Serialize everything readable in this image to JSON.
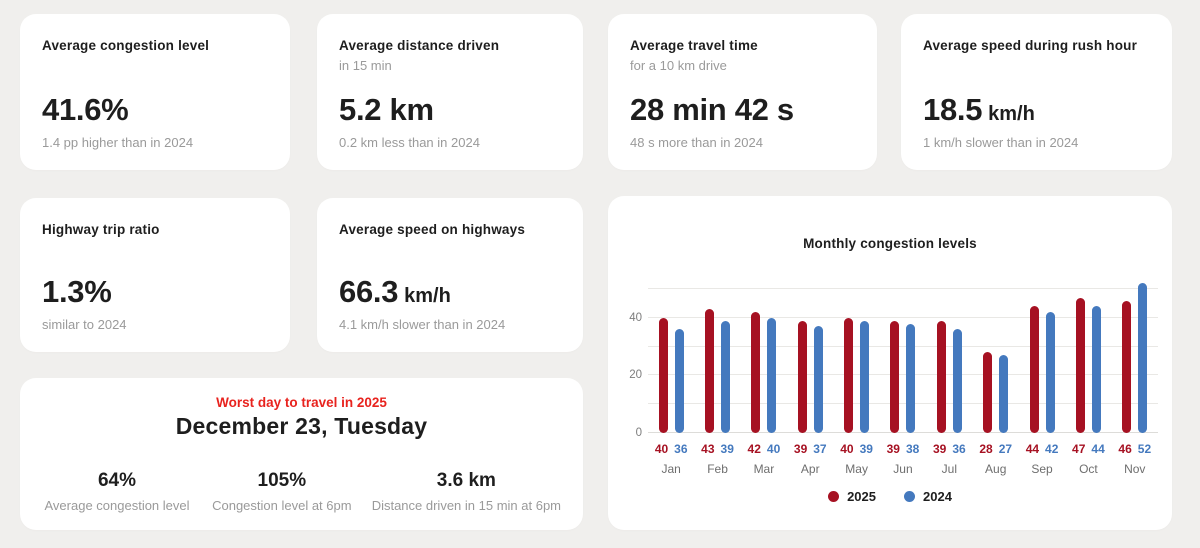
{
  "theme": {
    "background": "#f0efed",
    "card_background": "#ffffff",
    "text_dark": "#1e1e1e",
    "text_gray": "#9a9a9a",
    "accent_red": "#e8231e",
    "bar_red": "#a61122",
    "bar_blue": "#4479be"
  },
  "stat_cards": [
    {
      "title": "Average congestion level",
      "subtitle": "",
      "value": "41.6%",
      "unit": "",
      "note": "1.4 pp higher than in 2024"
    },
    {
      "title": "Average distance driven",
      "subtitle": "in 15 min",
      "value": "5.2 km",
      "unit": "",
      "note": "0.2 km less than in 2024"
    },
    {
      "title": "Average travel time",
      "subtitle": "for a 10 km drive",
      "value": "28 min 42 s",
      "unit": "",
      "note": "48 s more than in 2024"
    },
    {
      "title": "Average speed during rush hour",
      "subtitle": "",
      "value": "18.5",
      "unit": "km/h",
      "note": "1 km/h slower than in 2024"
    },
    {
      "title": "Highway trip ratio",
      "subtitle": "",
      "value": "1.3%",
      "unit": "",
      "note": "similar to 2024"
    },
    {
      "title": "Average speed on highways",
      "subtitle": "",
      "value": "66.3",
      "unit": "km/h",
      "note": "4.1 km/h slower than in 2024"
    }
  ],
  "worst_day": {
    "label": "Worst day to travel in 2025",
    "date": "December 23, Tuesday",
    "stats": [
      {
        "value": "64%",
        "caption": "Average congestion level"
      },
      {
        "value": "105%",
        "caption": "Congestion level at 6pm"
      },
      {
        "value": "3.6 km",
        "caption": "Distance driven in 15 min at 6pm"
      }
    ]
  },
  "chart_data": {
    "type": "bar",
    "title": "Monthly congestion levels",
    "categories": [
      "Jan",
      "Feb",
      "Mar",
      "Apr",
      "May",
      "Jun",
      "Jul",
      "Aug",
      "Sep",
      "Oct",
      "Nov"
    ],
    "series": [
      {
        "name": "2025",
        "color": "#a61122",
        "values": [
          40,
          43,
          42,
          39,
          40,
          39,
          39,
          28,
          44,
          47,
          46
        ]
      },
      {
        "name": "2024",
        "color": "#4479be",
        "values": [
          36,
          39,
          40,
          37,
          39,
          38,
          36,
          27,
          42,
          44,
          52
        ]
      }
    ],
    "ylim": [
      0,
      52
    ],
    "yticks": [
      0,
      20,
      40
    ],
    "gridlines": [
      0,
      10,
      20,
      30,
      40,
      50
    ],
    "grid": true,
    "legend_position": "bottom",
    "value_labels": true
  }
}
